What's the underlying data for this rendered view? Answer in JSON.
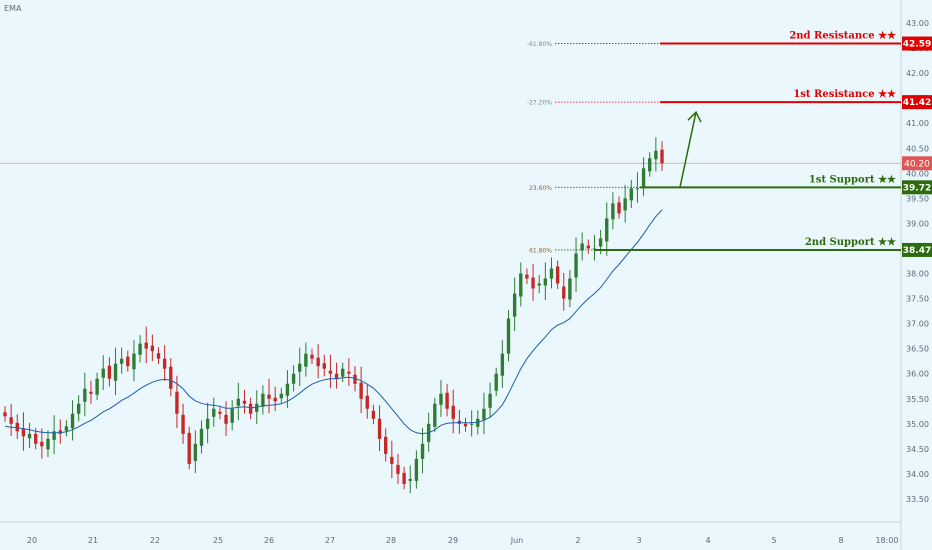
{
  "indicator_label": "EMA",
  "colors": {
    "background": "#eaf7fd",
    "up_candle": "#2e7d32",
    "down_candle": "#c62828",
    "ema": "#1f5fa8",
    "resistance": "#e00000",
    "support": "#2e6b0e",
    "current_price": "#e05555",
    "arrow": "#2e6b0e"
  },
  "chart_data": {
    "type": "candlestick",
    "x_ticks": [
      "20",
      "21",
      "22",
      "25",
      "26",
      "27",
      "28",
      "29",
      "Jun",
      "2",
      "3",
      "4",
      "5",
      "8",
      "18:00"
    ],
    "y_range": [
      33.0,
      43.3
    ],
    "y_ticks": [
      "33.00",
      "33.50",
      "34.00",
      "34.50",
      "35.00",
      "35.50",
      "36.00",
      "36.50",
      "37.00",
      "37.50",
      "38.00",
      "38.50",
      "39.00",
      "39.50",
      "40.00",
      "40.50",
      "41.00",
      "41.50",
      "42.00",
      "42.50",
      "43.00"
    ],
    "current_price": {
      "value": 40.2,
      "label": "40.20"
    },
    "levels": [
      {
        "name": "2nd Resistance ★★",
        "value_label": "42.59",
        "value": 42.59,
        "kind": "resistance",
        "fib_label": "-61.80%"
      },
      {
        "name": "1st Resistance ★★",
        "value_label": "41.42",
        "value": 41.42,
        "kind": "resistance",
        "fib_label": "-27.20%"
      },
      {
        "name": "1st Support ★★",
        "value_label": "39.72",
        "value": 39.72,
        "kind": "support",
        "fib_label": "23.60%"
      },
      {
        "name": "2nd Support ★★",
        "value_label": "38.47",
        "value": 38.47,
        "kind": "support",
        "fib_label": "61.80%"
      }
    ],
    "projection_arrow": {
      "from_price": 39.72,
      "to_price": 41.42
    },
    "close_series": [
      35.15,
      35.0,
      34.85,
      34.75,
      34.8,
      34.6,
      34.55,
      34.7,
      34.85,
      34.8,
      34.95,
      35.2,
      35.4,
      35.7,
      35.6,
      35.9,
      36.1,
      35.9,
      36.2,
      36.3,
      36.15,
      36.4,
      36.6,
      36.5,
      36.45,
      36.3,
      36.1,
      35.7,
      35.2,
      34.8,
      34.2,
      34.6,
      34.9,
      35.1,
      35.3,
      35.2,
      35.0,
      35.3,
      35.5,
      35.4,
      35.2,
      35.4,
      35.6,
      35.5,
      35.45,
      35.6,
      35.8,
      36.0,
      36.2,
      36.4,
      36.3,
      36.15,
      36.1,
      36.0,
      35.9,
      36.1,
      36.0,
      35.8,
      35.5,
      35.3,
      35.1,
      34.7,
      34.4,
      34.2,
      34.0,
      33.8,
      33.9,
      34.3,
      34.6,
      35.0,
      35.4,
      35.6,
      35.3,
      35.1,
      35.0,
      34.95,
      35.0,
      35.1,
      35.3,
      35.6,
      36.0,
      36.4,
      37.1,
      37.6,
      38.0,
      37.9,
      37.7,
      37.8,
      37.9,
      38.1,
      37.8,
      37.5,
      37.9,
      38.4,
      38.6,
      38.5,
      38.5,
      38.7,
      39.1,
      39.4,
      39.2,
      39.5,
      39.7,
      39.7,
      40.1,
      40.3,
      40.45,
      40.2
    ],
    "ema_series": [
      34.95,
      34.93,
      34.92,
      34.9,
      34.88,
      34.85,
      34.83,
      34.82,
      34.82,
      34.82,
      34.84,
      34.88,
      34.94,
      35.01,
      35.07,
      35.15,
      35.24,
      35.3,
      35.38,
      35.47,
      35.53,
      35.61,
      35.7,
      35.77,
      35.83,
      35.87,
      35.89,
      35.87,
      35.8,
      35.7,
      35.55,
      35.46,
      35.41,
      35.38,
      35.37,
      35.35,
      35.31,
      35.31,
      35.33,
      35.34,
      35.32,
      35.33,
      35.36,
      35.37,
      35.38,
      35.4,
      35.45,
      35.52,
      35.61,
      35.71,
      35.79,
      35.84,
      35.88,
      35.9,
      35.9,
      35.92,
      35.93,
      35.91,
      35.86,
      35.79,
      35.71,
      35.59,
      35.45,
      35.3,
      35.15,
      35.0,
      34.88,
      34.82,
      34.8,
      34.82,
      34.88,
      34.97,
      35.01,
      35.02,
      35.02,
      35.02,
      35.02,
      35.03,
      35.07,
      35.13,
      35.24,
      35.38,
      35.6,
      35.85,
      36.1,
      36.3,
      36.46,
      36.6,
      36.73,
      36.88,
      36.97,
      37.02,
      37.1,
      37.24,
      37.38,
      37.5,
      37.6,
      37.72,
      37.88,
      38.05,
      38.18,
      38.33,
      38.48,
      38.62,
      38.79,
      38.97,
      39.14,
      39.27
    ]
  }
}
